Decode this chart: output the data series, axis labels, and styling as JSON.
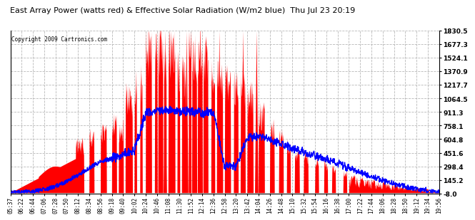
{
  "title": "East Array Power (watts red) & Effective Solar Radiation (W/m2 blue)  Thu Jul 23 20:19",
  "copyright": "Copyright 2009 Cartronics.com",
  "yticks": [
    1830.5,
    1677.3,
    1524.1,
    1370.9,
    1217.7,
    1064.5,
    911.3,
    758.1,
    604.8,
    451.6,
    298.4,
    145.2,
    -8.0
  ],
  "ylim": [
    -8.0,
    1830.5
  ],
  "x_tick_labels": [
    "05:37",
    "06:22",
    "06:44",
    "07:06",
    "07:28",
    "07:50",
    "08:12",
    "08:34",
    "08:56",
    "09:18",
    "09:40",
    "10:02",
    "10:24",
    "10:46",
    "11:08",
    "11:30",
    "11:52",
    "12:14",
    "12:36",
    "12:58",
    "13:20",
    "13:42",
    "14:04",
    "14:26",
    "14:48",
    "15:10",
    "15:32",
    "15:54",
    "16:16",
    "16:38",
    "17:00",
    "17:22",
    "17:44",
    "18:06",
    "18:28",
    "18:50",
    "19:12",
    "19:34",
    "19:56"
  ],
  "bg_color": "#ffffff",
  "red_color": "#ff0000",
  "blue_color": "#0000ff",
  "grid_color": "#b0b0b0"
}
